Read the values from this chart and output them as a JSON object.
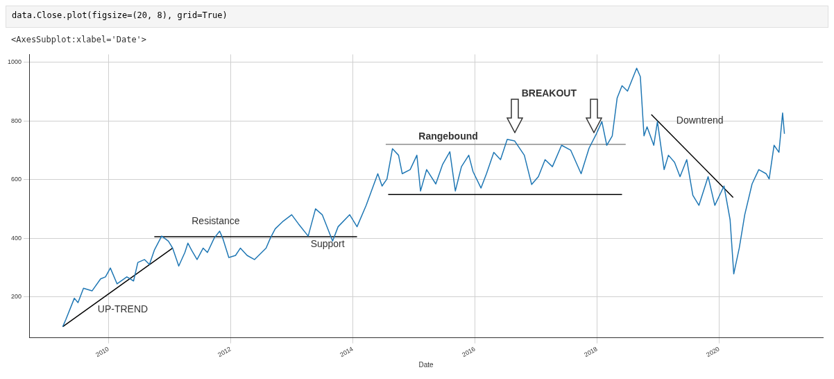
{
  "chart_data": {
    "type": "line",
    "xlabel": "Date",
    "annotations": [
      "data.Close.plot(figsize=(20, 8), grid=True)",
      "<AxesSubplot:xlabel='Date'>",
      "UP-TREND",
      "Resistance",
      "Support",
      "Rangebound",
      "BREAKOUT",
      "Downtrend"
    ],
    "series": [
      {
        "color": "#1f77b4",
        "x": [
          2009.25,
          2009.3,
          2009.44,
          2009.5,
          2009.59,
          2009.73,
          2009.87,
          2009.95,
          2010.03,
          2010.14,
          2010.3,
          2010.41,
          2010.48,
          2010.59,
          2010.67,
          2010.75,
          2010.87,
          2010.98,
          2011.05,
          2011.15,
          2011.25,
          2011.3,
          2011.36,
          2011.45,
          2011.55,
          2011.62,
          2011.73,
          2011.82,
          2011.87,
          2011.97,
          2012.08,
          2012.16,
          2012.27,
          2012.39,
          2012.58,
          2012.65,
          2012.73,
          2012.85,
          2013.0,
          2013.11,
          2013.27,
          2013.39,
          2013.5,
          2013.67,
          2013.76,
          2013.95,
          2014.07,
          2014.22,
          2014.41,
          2014.48,
          2014.56,
          2014.65,
          2014.75,
          2014.81,
          2014.94,
          2015.05,
          2015.11,
          2015.21,
          2015.36,
          2015.47,
          2015.59,
          2015.68,
          2015.78,
          2015.9,
          2015.97,
          2016.1,
          2016.19,
          2016.31,
          2016.42,
          2016.53,
          2016.65,
          2016.81,
          2016.93,
          2017.04,
          2017.15,
          2017.27,
          2017.42,
          2017.57,
          2017.74,
          2017.87,
          2017.99,
          2018.08,
          2018.16,
          2018.25,
          2018.33,
          2018.41,
          2018.5,
          2018.65,
          2018.71,
          2018.77,
          2018.82,
          2018.93,
          2018.99,
          2019.1,
          2019.17,
          2019.27,
          2019.36,
          2019.47,
          2019.57,
          2019.67,
          2019.82,
          2019.93,
          2020.08,
          2020.18,
          2020.24,
          2020.33,
          2020.42,
          2020.54,
          2020.65,
          2020.77,
          2020.82,
          2020.9,
          2020.98,
          2021.04,
          2021.07
        ],
        "values": [
          98,
          122,
          195,
          180,
          229,
          220,
          261,
          268,
          298,
          244,
          268,
          254,
          317,
          327,
          310,
          359,
          407,
          390,
          366,
          305,
          351,
          383,
          359,
          327,
          366,
          351,
          400,
          424,
          400,
          334,
          341,
          366,
          341,
          327,
          366,
          400,
          432,
          456,
          480,
          449,
          407,
          500,
          480,
          390,
          439,
          480,
          439,
          512,
          620,
          578,
          602,
          705,
          683,
          620,
          634,
          683,
          561,
          634,
          585,
          651,
          695,
          561,
          644,
          683,
          627,
          571,
          620,
          693,
          668,
          737,
          732,
          683,
          583,
          610,
          668,
          644,
          717,
          700,
          620,
          707,
          756,
          798,
          717,
          749,
          878,
          920,
          902,
          980,
          951,
          749,
          780,
          717,
          798,
          634,
          683,
          659,
          610,
          668,
          546,
          512,
          610,
          512,
          578,
          463,
          278,
          366,
          480,
          585,
          634,
          620,
          602,
          717,
          693,
          827,
          756
        ]
      },
      {
        "type": "line",
        "color": "#000000",
        "x": [
          2009.25,
          2011.05
        ],
        "values": [
          98,
          366
        ]
      },
      {
        "type": "line",
        "color": "#000000",
        "x": [
          2010.75,
          2014.07
        ],
        "values": [
          405,
          405
        ]
      },
      {
        "type": "line",
        "color": "#8c8c8c",
        "x": [
          2014.54,
          2018.47
        ],
        "values": [
          720,
          720
        ]
      },
      {
        "type": "line",
        "color": "#000000",
        "x": [
          2014.58,
          2018.41
        ],
        "values": [
          549,
          549
        ]
      },
      {
        "type": "line",
        "color": "#000000",
        "x": [
          2018.89,
          2020.23
        ],
        "values": [
          822,
          539
        ]
      }
    ],
    "xlim": [
      2008.7,
      2021.7
    ],
    "xticks": [
      2010,
      2012,
      2014,
      2016,
      2018,
      2020
    ],
    "ylim": [
      60,
      1027
    ],
    "yticks": [
      200,
      400,
      600,
      800,
      1000
    ],
    "grid": true
  }
}
